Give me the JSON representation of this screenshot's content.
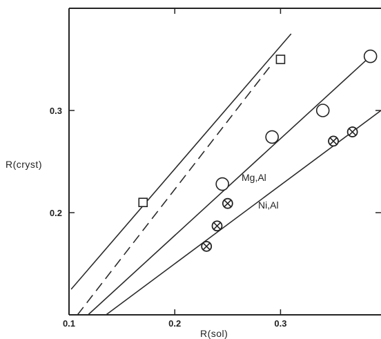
{
  "chart_data": {
    "type": "scatter",
    "xlabel": "R(sol)",
    "ylabel": "R(cryst)",
    "xlim": [
      0.1,
      0.395
    ],
    "ylim": [
      0.1,
      0.4
    ],
    "x_ticks": [
      0.1,
      0.2,
      0.3
    ],
    "x_tick_labels": [
      "0.1",
      "0.2",
      "0.3"
    ],
    "y_ticks": [
      0.2,
      0.3
    ],
    "y_tick_labels": [
      "0.2",
      "0.3"
    ],
    "grid": false,
    "series": [
      {
        "marker": "square",
        "points": [
          [
            0.17,
            0.21
          ],
          [
            0.3,
            0.35
          ]
        ],
        "fit_line": {
          "x": [
            0.102,
            0.31
          ],
          "y": [
            0.125,
            0.375
          ],
          "style": "solid"
        }
      },
      {
        "marker": "none",
        "fit_line": {
          "x": [
            0.108,
            0.29
          ],
          "y": [
            0.1,
            0.343
          ],
          "style": "dashed"
        }
      },
      {
        "name": "Mg,Al",
        "marker": "circle",
        "points": [
          [
            0.245,
            0.228
          ],
          [
            0.292,
            0.274
          ],
          [
            0.34,
            0.3
          ],
          [
            0.385,
            0.353
          ]
        ],
        "fit_line": {
          "x": [
            0.118,
            0.385
          ],
          "y": [
            0.1,
            0.353
          ],
          "style": "solid"
        }
      },
      {
        "name": "Ni,Al",
        "marker": "circle-cross",
        "points": [
          [
            0.23,
            0.167
          ],
          [
            0.24,
            0.187
          ],
          [
            0.25,
            0.209
          ],
          [
            0.35,
            0.27
          ],
          [
            0.368,
            0.279
          ]
        ],
        "fit_line": {
          "x": [
            0.135,
            0.395
          ],
          "y": [
            0.1,
            0.3
          ],
          "style": "solid"
        }
      }
    ]
  }
}
